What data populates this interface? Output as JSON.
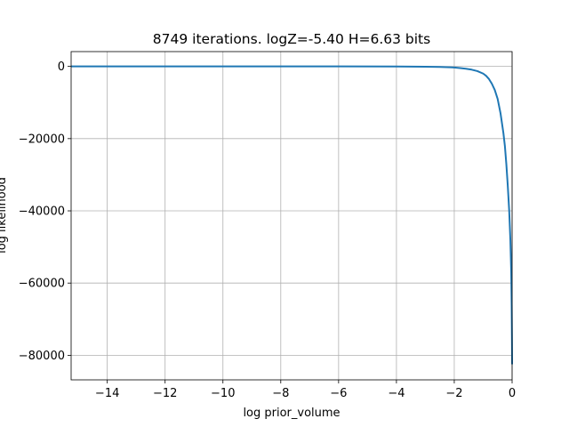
{
  "chart_data": {
    "type": "line",
    "title": "8749 iterations. logZ=-5.40 H=6.63 bits",
    "xlabel": "log prior_volume",
    "ylabel": "log likelihood",
    "xlim": [
      -15.25,
      0
    ],
    "ylim": [
      -86800,
      4100
    ],
    "grid": true,
    "x_ticks": [
      -14,
      -12,
      -10,
      -8,
      -6,
      -4,
      -2,
      0
    ],
    "x_tick_labels": [
      "−14",
      "−12",
      "−10",
      "−8",
      "−6",
      "−4",
      "−2",
      "0"
    ],
    "y_ticks": [
      0,
      -20000,
      -40000,
      -60000,
      -80000
    ],
    "y_tick_labels": [
      "0",
      "−20000",
      "−40000",
      "−60000",
      "−80000"
    ],
    "colors": {
      "line": "#1f77b4",
      "grid": "#b0b0b0"
    },
    "series": [
      {
        "x": [
          -15.25,
          -10,
          -6,
          -4,
          -3,
          -2.5,
          -2,
          -1.8,
          -1.6,
          -1.4,
          -1.2,
          -1.0,
          -0.9,
          -0.8,
          -0.7,
          -0.6,
          -0.5,
          -0.4,
          -0.3,
          -0.25,
          -0.2,
          -0.15,
          -0.1,
          -0.06,
          -0.03,
          -0.015,
          -0.005,
          0
        ],
        "y": [
          -5,
          -5,
          -10,
          -30,
          -80,
          -150,
          -300,
          -450,
          -650,
          -900,
          -1300,
          -2000,
          -2600,
          -3500,
          -4800,
          -6500,
          -9000,
          -13000,
          -18500,
          -22000,
          -27000,
          -33000,
          -40000,
          -48000,
          -57000,
          -66000,
          -76000,
          -82500
        ]
      }
    ]
  }
}
